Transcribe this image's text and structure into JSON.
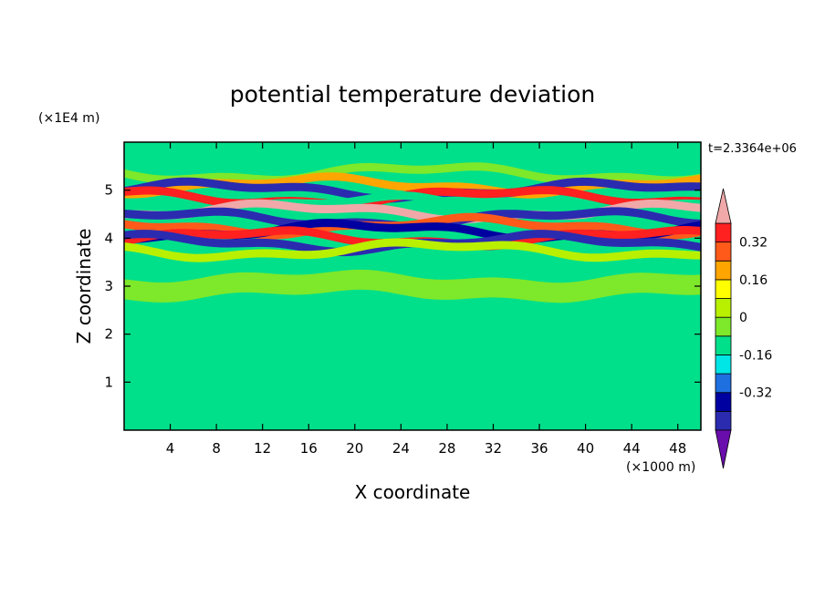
{
  "chart_data": {
    "type": "heatmap",
    "title": "potential temperature deviation",
    "xlabel": "X coordinate",
    "ylabel": "Z coordinate",
    "x_unit": "(×1000 m)",
    "y_unit": "(×1E4 m)",
    "time_label": "t=2.3364e+06",
    "xlim": [
      0,
      50
    ],
    "ylim": [
      0,
      6
    ],
    "x_ticks": [
      4,
      8,
      12,
      16,
      20,
      24,
      28,
      32,
      36,
      40,
      44,
      48
    ],
    "y_ticks": [
      1,
      2,
      3,
      4,
      5
    ],
    "colorbar": {
      "levels": [
        -0.48,
        -0.4,
        -0.32,
        -0.24,
        -0.16,
        -0.08,
        0,
        0.08,
        0.16,
        0.24,
        0.32,
        0.4,
        0.48
      ],
      "tick_labels": [
        "-0.32",
        "-0.16",
        "0",
        "0.16",
        "0.32"
      ],
      "tick_values": [
        -0.32,
        -0.16,
        0,
        0.16,
        0.32
      ],
      "colors": [
        "#6a0dad",
        "#2b2bb0",
        "#0000a0",
        "#1e6fe0",
        "#00e5e5",
        "#00e08a",
        "#7ee82a",
        "#b8f000",
        "#ffff00",
        "#ffa500",
        "#ff5a1a",
        "#ff2020",
        "#f0a8a8"
      ]
    },
    "bands": [
      {
        "z": 5.35,
        "value": 0.0
      },
      {
        "z": 5.1,
        "value": 0.24
      },
      {
        "z": 5.0,
        "value": -0.4
      },
      {
        "z": 4.85,
        "value": 0.4
      },
      {
        "z": 4.7,
        "value": -0.12
      },
      {
        "z": 4.55,
        "value": 0.48
      },
      {
        "z": 4.4,
        "value": -0.4
      },
      {
        "z": 4.25,
        "value": 0.3
      },
      {
        "z": 4.15,
        "value": -0.32
      },
      {
        "z": 4.0,
        "value": 0.4
      },
      {
        "z": 3.9,
        "value": -0.4
      },
      {
        "z": 3.75,
        "value": 0.12
      },
      {
        "z": 3.0,
        "value": 0.02
      },
      {
        "z": 2.0,
        "value": -0.04
      },
      {
        "z": 1.0,
        "value": -0.05
      },
      {
        "z": 0.5,
        "value": -0.06
      }
    ]
  }
}
